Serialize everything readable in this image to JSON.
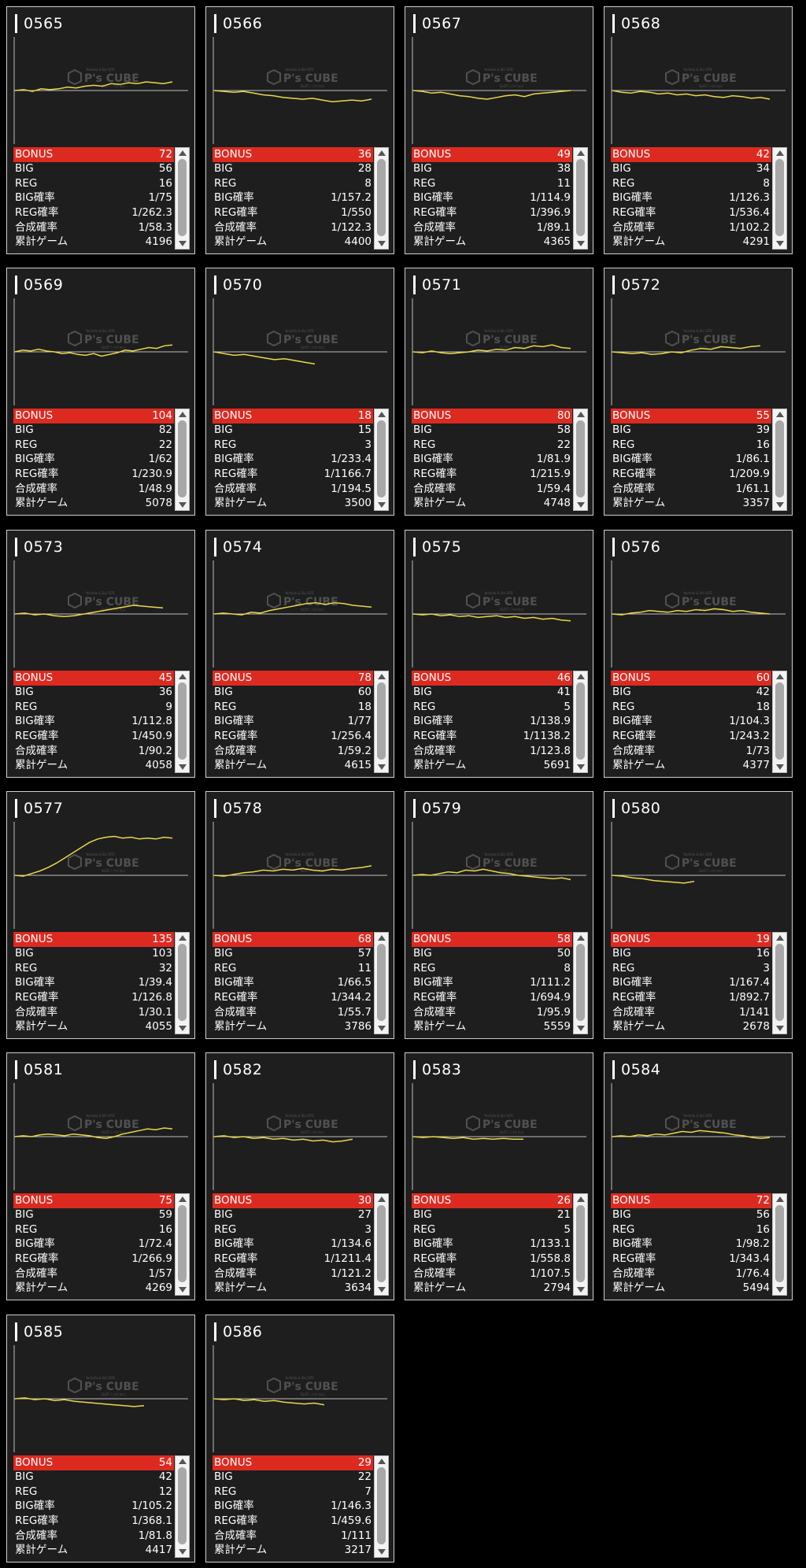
{
  "colors": {
    "bonus_bg": "#dd2a21",
    "line": "#e8d84a",
    "panel": "#1e1e1e"
  },
  "watermark": {
    "brand": "P's CUBE",
    "tag": "Yoshida & Ebi SITE",
    "sub": "SLOT / パチスロ"
  },
  "labels": {
    "bonus": "BONUS",
    "big": "BIG",
    "reg": "REG",
    "big_rate": "BIG確率",
    "reg_rate": "REG確率",
    "total_rate": "合成確率",
    "games": "累計ゲーム"
  },
  "machines": [
    {
      "id": "0565",
      "bonus": "72",
      "big": "56",
      "reg": "16",
      "big_rate": "1/75",
      "reg_rate": "1/262.3",
      "total_rate": "1/58.3",
      "games": "4196",
      "trend": [
        0,
        1,
        -1,
        2,
        1,
        2,
        4,
        3,
        5,
        6,
        5,
        8,
        7,
        9,
        8,
        10,
        9,
        8,
        10
      ]
    },
    {
      "id": "0566",
      "bonus": "36",
      "big": "28",
      "reg": "8",
      "big_rate": "1/157.2",
      "reg_rate": "1/550",
      "total_rate": "1/122.3",
      "games": "4400",
      "trend": [
        0,
        -1,
        -2,
        -1,
        -3,
        -5,
        -6,
        -8,
        -9,
        -10,
        -9,
        -11,
        -13,
        -12,
        -11,
        -12,
        -10
      ]
    },
    {
      "id": "0567",
      "bonus": "49",
      "big": "38",
      "reg": "11",
      "big_rate": "1/114.9",
      "reg_rate": "1/396.9",
      "total_rate": "1/89.1",
      "games": "4365",
      "trend": [
        0,
        -1,
        -3,
        -2,
        -4,
        -6,
        -7,
        -9,
        -10,
        -8,
        -6,
        -5,
        -7,
        -4,
        -3,
        -2,
        -1,
        0
      ]
    },
    {
      "id": "0568",
      "bonus": "42",
      "big": "34",
      "reg": "8",
      "big_rate": "1/126.3",
      "reg_rate": "1/536.4",
      "total_rate": "1/102.2",
      "games": "4291",
      "trend": [
        0,
        -2,
        -3,
        -1,
        -2,
        -4,
        -3,
        -5,
        -4,
        -6,
        -5,
        -7,
        -8,
        -6,
        -7,
        -9,
        -8,
        -10
      ]
    },
    {
      "id": "0569",
      "bonus": "104",
      "big": "82",
      "reg": "22",
      "big_rate": "1/62",
      "reg_rate": "1/230.9",
      "total_rate": "1/48.9",
      "games": "5078",
      "trend": [
        0,
        2,
        1,
        3,
        1,
        0,
        -2,
        -1,
        -3,
        -4,
        -2,
        -5,
        -3,
        -1,
        2,
        1,
        3,
        5,
        4,
        7,
        8
      ]
    },
    {
      "id": "0570",
      "bonus": "18",
      "big": "15",
      "reg": "3",
      "big_rate": "1/233.4",
      "reg_rate": "1/1166.7",
      "total_rate": "1/194.5",
      "games": "3500",
      "trend": [
        0,
        -2,
        -4,
        -3,
        -5,
        -7,
        -9,
        -8,
        -10,
        -12,
        -14
      ]
    },
    {
      "id": "0571",
      "bonus": "80",
      "big": "58",
      "reg": "22",
      "big_rate": "1/81.9",
      "reg_rate": "1/215.9",
      "total_rate": "1/59.4",
      "games": "4748",
      "trend": [
        0,
        -1,
        1,
        -1,
        -2,
        -1,
        0,
        2,
        1,
        3,
        2,
        5,
        4,
        7,
        6,
        8,
        5,
        4
      ]
    },
    {
      "id": "0572",
      "bonus": "55",
      "big": "39",
      "reg": "16",
      "big_rate": "1/86.1",
      "reg_rate": "1/209.9",
      "total_rate": "1/61.1",
      "games": "3357",
      "trend": [
        0,
        -1,
        -2,
        -1,
        -3,
        -2,
        0,
        -1,
        2,
        4,
        3,
        6,
        5,
        4,
        6,
        7
      ]
    },
    {
      "id": "0573",
      "bonus": "45",
      "big": "36",
      "reg": "9",
      "big_rate": "1/112.8",
      "reg_rate": "1/450.9",
      "total_rate": "1/90.2",
      "games": "4058",
      "trend": [
        0,
        1,
        -1,
        0,
        -2,
        -3,
        -2,
        0,
        2,
        4,
        6,
        8,
        10,
        9,
        8,
        7
      ]
    },
    {
      "id": "0574",
      "bonus": "78",
      "big": "60",
      "reg": "18",
      "big_rate": "1/77",
      "reg_rate": "1/256.4",
      "total_rate": "1/59.2",
      "games": "4615",
      "trend": [
        0,
        1,
        0,
        -1,
        2,
        1,
        4,
        6,
        8,
        10,
        12,
        13,
        11,
        13,
        12,
        10,
        9,
        8
      ]
    },
    {
      "id": "0575",
      "bonus": "46",
      "big": "41",
      "reg": "5",
      "big_rate": "1/138.9",
      "reg_rate": "1/1138.2",
      "total_rate": "1/123.8",
      "games": "5691",
      "trend": [
        0,
        -1,
        0,
        -2,
        -1,
        -3,
        -2,
        -4,
        -3,
        -2,
        -4,
        -3,
        -5,
        -4,
        -6,
        -5,
        -7,
        -8
      ]
    },
    {
      "id": "0576",
      "bonus": "60",
      "big": "42",
      "reg": "18",
      "big_rate": "1/104.3",
      "reg_rate": "1/243.2",
      "total_rate": "1/73",
      "games": "4377",
      "trend": [
        0,
        -1,
        1,
        2,
        4,
        3,
        2,
        4,
        3,
        5,
        4,
        6,
        5,
        3,
        4,
        2,
        1,
        0
      ]
    },
    {
      "id": "0577",
      "bonus": "135",
      "big": "103",
      "reg": "32",
      "big_rate": "1/39.4",
      "reg_rate": "1/126.8",
      "total_rate": "1/30.1",
      "games": "4055",
      "trend": [
        0,
        -1,
        2,
        5,
        9,
        14,
        20,
        26,
        32,
        38,
        42,
        44,
        45,
        43,
        44,
        42,
        43,
        42,
        44,
        43
      ]
    },
    {
      "id": "0578",
      "bonus": "68",
      "big": "57",
      "reg": "11",
      "big_rate": "1/66.5",
      "reg_rate": "1/344.2",
      "total_rate": "1/55.7",
      "games": "3786",
      "trend": [
        0,
        -1,
        1,
        3,
        4,
        6,
        5,
        7,
        6,
        8,
        6,
        5,
        7,
        6,
        8,
        9,
        11
      ]
    },
    {
      "id": "0579",
      "bonus": "58",
      "big": "50",
      "reg": "8",
      "big_rate": "1/111.2",
      "reg_rate": "1/694.9",
      "total_rate": "1/95.9",
      "games": "5559",
      "trend": [
        0,
        1,
        0,
        2,
        4,
        3,
        6,
        5,
        7,
        5,
        3,
        2,
        0,
        -1,
        -2,
        -3,
        -4,
        -3,
        -5
      ]
    },
    {
      "id": "0580",
      "bonus": "19",
      "big": "16",
      "reg": "3",
      "big_rate": "1/167.4",
      "reg_rate": "1/892.7",
      "total_rate": "1/141",
      "games": "2678",
      "trend": [
        0,
        -1,
        -3,
        -4,
        -6,
        -7,
        -8,
        -9,
        -7
      ]
    },
    {
      "id": "0581",
      "bonus": "75",
      "big": "59",
      "reg": "16",
      "big_rate": "1/72.4",
      "reg_rate": "1/266.9",
      "total_rate": "1/57",
      "games": "4269",
      "trend": [
        0,
        1,
        0,
        2,
        3,
        2,
        1,
        3,
        2,
        1,
        -1,
        -2,
        0,
        3,
        5,
        7,
        9,
        8,
        10,
        9
      ]
    },
    {
      "id": "0582",
      "bonus": "30",
      "big": "27",
      "reg": "3",
      "big_rate": "1/134.6",
      "reg_rate": "1/1211.4",
      "total_rate": "1/121.2",
      "games": "3634",
      "trend": [
        0,
        1,
        -1,
        0,
        -2,
        -1,
        -3,
        -2,
        -4,
        -3,
        -5,
        -4,
        -6,
        -5,
        -3
      ]
    },
    {
      "id": "0583",
      "bonus": "26",
      "big": "21",
      "reg": "5",
      "big_rate": "1/133.1",
      "reg_rate": "1/558.8",
      "total_rate": "1/107.5",
      "games": "2794",
      "trend": [
        0,
        -1,
        0,
        -1,
        -2,
        -1,
        -3,
        -2,
        -3,
        -2,
        -3,
        -3
      ]
    },
    {
      "id": "0584",
      "bonus": "72",
      "big": "56",
      "reg": "16",
      "big_rate": "1/98.2",
      "reg_rate": "1/343.4",
      "total_rate": "1/76.4",
      "games": "5494",
      "trend": [
        0,
        1,
        0,
        2,
        1,
        3,
        2,
        4,
        6,
        5,
        7,
        6,
        5,
        4,
        2,
        1,
        -1,
        -2,
        -1
      ]
    },
    {
      "id": "0585",
      "bonus": "54",
      "big": "42",
      "reg": "12",
      "big_rate": "1/105.2",
      "reg_rate": "1/368.1",
      "total_rate": "1/81.8",
      "games": "4417",
      "trend": [
        0,
        1,
        -1,
        0,
        -2,
        -1,
        -3,
        -4,
        -5,
        -6,
        -7,
        -8,
        -9,
        -8
      ]
    },
    {
      "id": "0586",
      "bonus": "29",
      "big": "22",
      "reg": "7",
      "big_rate": "1/146.3",
      "reg_rate": "1/459.6",
      "total_rate": "1/111",
      "games": "3217",
      "trend": [
        0,
        -1,
        0,
        -2,
        -1,
        -3,
        -2,
        -4,
        -5,
        -6,
        -5,
        -7
      ]
    }
  ]
}
